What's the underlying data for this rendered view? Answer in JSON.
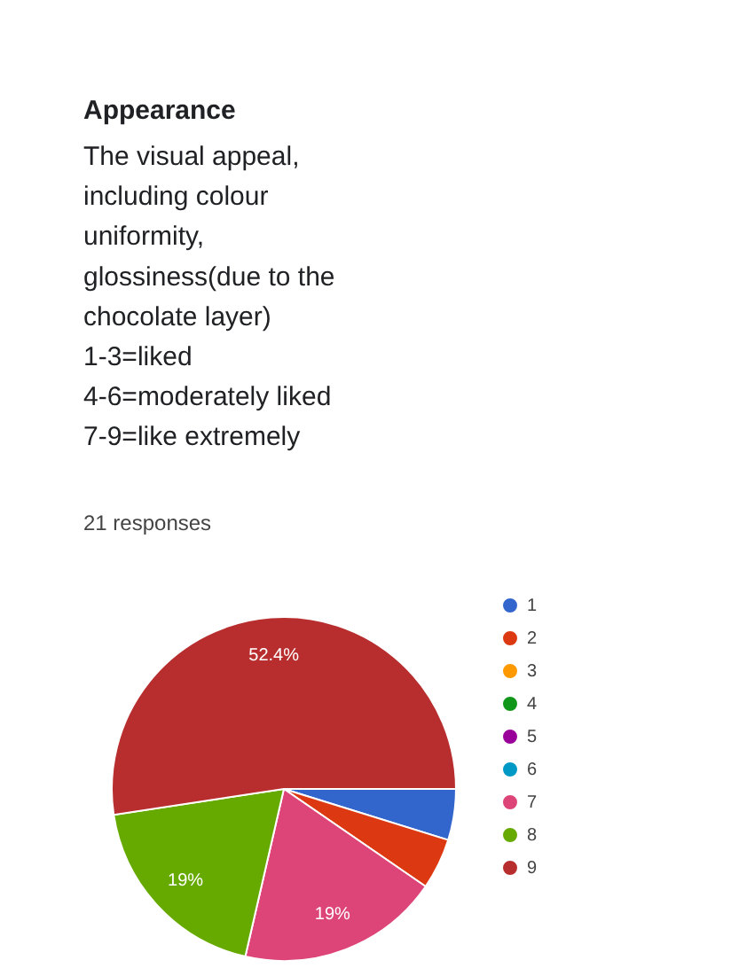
{
  "chart_data": {
    "type": "pie",
    "title": "Appearance",
    "subtitle": "The visual appeal,\nincluding colour\nuniformity,\nglossiness(due to the\nchocolate layer)\n1-3=liked\n4-6=moderately liked\n7-9=like extremely",
    "annotations": [
      "21 responses"
    ],
    "categories": [
      "1",
      "2",
      "3",
      "4",
      "5",
      "6",
      "7",
      "8",
      "9"
    ],
    "values": [
      4.8,
      4.8,
      0,
      0,
      0,
      0,
      19,
      19,
      52.4
    ],
    "value_labels": [
      null,
      null,
      null,
      null,
      null,
      null,
      "19%",
      "19%",
      "52.4%"
    ],
    "colors": [
      "#3366cc",
      "#dc3912",
      "#ff9900",
      "#109618",
      "#990099",
      "#0099c6",
      "#dd4477",
      "#66aa00",
      "#b82e2e"
    ],
    "legend": "right"
  }
}
